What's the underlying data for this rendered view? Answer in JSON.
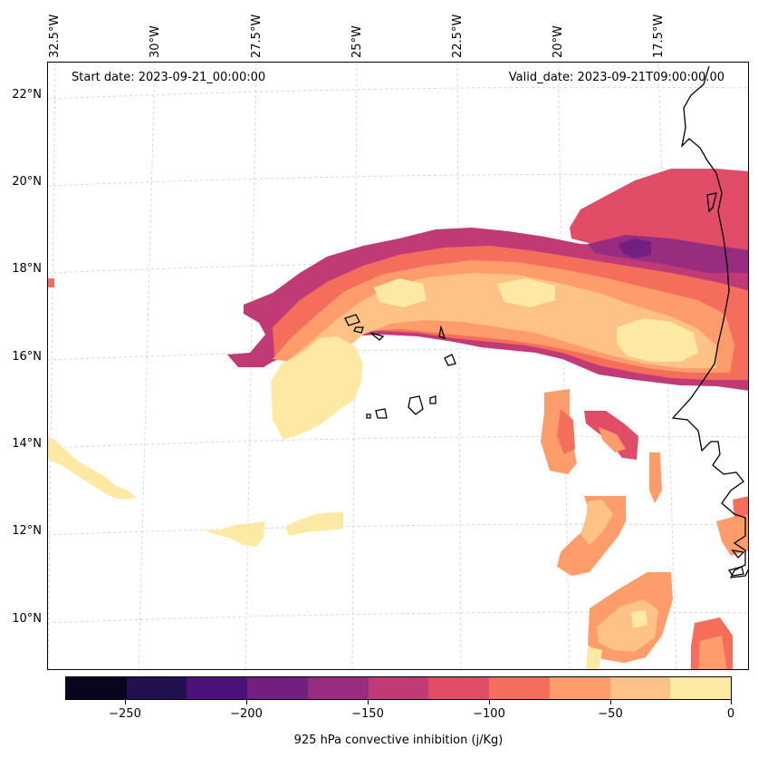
{
  "header": {
    "start_date": "Start date: 2023-09-21_00:00:00",
    "valid_date": "Valid_date: 2023-09-21T09:00:00.00"
  },
  "map": {
    "lon_labels": [
      "32.5°W",
      "30°W",
      "27.5°W",
      "25°W",
      "22.5°W",
      "20°W",
      "17.5°W"
    ],
    "lat_labels": [
      "22°N",
      "20°N",
      "18°N",
      "16°N",
      "14°N",
      "12°N",
      "10°N"
    ],
    "gridlines": "dashed-light-gray",
    "coastline_color": "#000000"
  },
  "colorbar": {
    "label": "925 hPa convective inhibition (j/Kg)",
    "tick_labels": [
      "−250",
      "−200",
      "−150",
      "−100",
      "−50",
      "0"
    ],
    "levels": [
      -275,
      -250,
      -225,
      -200,
      -175,
      -150,
      -125,
      -100,
      -75,
      -50,
      -25,
      0
    ],
    "colors": [
      "#07061c",
      "#221150",
      "#4d117b",
      "#721f81",
      "#982d80",
      "#c03a76",
      "#e14d66",
      "#f56e5c",
      "#fe9c6b",
      "#fec287",
      "#fde9a4"
    ],
    "colormap": "magma"
  }
}
